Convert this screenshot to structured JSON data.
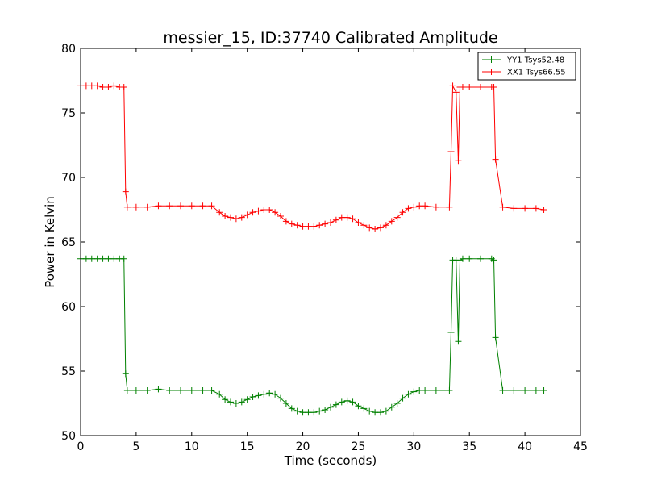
{
  "chart_data": {
    "type": "line",
    "title": "messier_15, ID:37740 Calibrated Amplitude",
    "xlabel": "Time (seconds)",
    "ylabel": "Power in Kelvin",
    "xlim": [
      0,
      45
    ],
    "ylim": [
      50,
      80
    ],
    "xticks": [
      "0",
      "5",
      "10",
      "15",
      "20",
      "25",
      "30",
      "35",
      "40",
      "45"
    ],
    "yticks": [
      "50",
      "55",
      "60",
      "65",
      "70",
      "75",
      "80"
    ],
    "grid": false,
    "legend_position": "top-right",
    "series": [
      {
        "name": "YY1 Tsys52.48",
        "color": "#008000",
        "x": [
          0.0,
          0.5,
          1.0,
          1.5,
          2.0,
          2.5,
          3.0,
          3.5,
          3.9,
          4.05,
          4.2,
          5.0,
          6.0,
          7.0,
          8.0,
          9.0,
          10.0,
          11.0,
          11.8,
          12.5,
          13.0,
          13.5,
          14.0,
          14.5,
          15.0,
          15.5,
          16.0,
          16.5,
          17.0,
          17.5,
          18.0,
          18.5,
          19.0,
          19.5,
          20.0,
          20.5,
          21.0,
          21.5,
          22.0,
          22.5,
          23.0,
          23.5,
          24.0,
          24.5,
          25.0,
          25.5,
          26.0,
          26.5,
          27.0,
          27.5,
          28.0,
          28.5,
          29.0,
          29.5,
          30.0,
          30.5,
          31.0,
          32.0,
          33.2,
          33.35,
          33.5,
          33.8,
          34.0,
          34.15,
          34.4,
          35.0,
          36.0,
          37.0,
          37.2,
          37.35,
          38.0,
          39.0,
          40.0,
          41.0,
          41.7
        ],
        "values": [
          63.7,
          63.7,
          63.7,
          63.7,
          63.7,
          63.7,
          63.7,
          63.7,
          63.7,
          54.8,
          53.5,
          53.5,
          53.5,
          53.6,
          53.5,
          53.5,
          53.5,
          53.5,
          53.5,
          53.2,
          52.8,
          52.6,
          52.5,
          52.6,
          52.8,
          53.0,
          53.1,
          53.2,
          53.3,
          53.2,
          52.9,
          52.5,
          52.1,
          51.9,
          51.8,
          51.8,
          51.8,
          51.9,
          52.0,
          52.2,
          52.4,
          52.6,
          52.7,
          52.6,
          52.3,
          52.1,
          51.9,
          51.8,
          51.8,
          51.9,
          52.2,
          52.5,
          52.9,
          53.2,
          53.4,
          53.5,
          53.5,
          53.5,
          53.5,
          58.0,
          63.6,
          63.6,
          57.3,
          63.6,
          63.7,
          63.7,
          63.7,
          63.7,
          63.6,
          57.6,
          53.5,
          53.5,
          53.5,
          53.5,
          53.5
        ]
      },
      {
        "name": "XX1 Tsys66.55",
        "color": "#ff0000",
        "x": [
          0.0,
          0.5,
          1.0,
          1.5,
          2.0,
          2.5,
          3.0,
          3.5,
          3.9,
          4.05,
          4.2,
          5.0,
          6.0,
          7.0,
          8.0,
          9.0,
          10.0,
          11.0,
          11.8,
          12.5,
          13.0,
          13.5,
          14.0,
          14.5,
          15.0,
          15.5,
          16.0,
          16.5,
          17.0,
          17.5,
          18.0,
          18.5,
          19.0,
          19.5,
          20.0,
          20.5,
          21.0,
          21.5,
          22.0,
          22.5,
          23.0,
          23.5,
          24.0,
          24.5,
          25.0,
          25.5,
          26.0,
          26.5,
          27.0,
          27.5,
          28.0,
          28.5,
          29.0,
          29.5,
          30.0,
          30.5,
          31.0,
          32.0,
          33.2,
          33.35,
          33.5,
          33.8,
          34.0,
          34.15,
          34.4,
          35.0,
          36.0,
          37.0,
          37.2,
          37.35,
          38.0,
          39.0,
          40.0,
          41.0,
          41.7
        ],
        "values": [
          77.1,
          77.1,
          77.1,
          77.1,
          77.0,
          77.0,
          77.1,
          77.0,
          77.0,
          68.9,
          67.7,
          67.7,
          67.7,
          67.8,
          67.8,
          67.8,
          67.8,
          67.8,
          67.8,
          67.3,
          67.0,
          66.9,
          66.8,
          66.9,
          67.1,
          67.3,
          67.4,
          67.5,
          67.5,
          67.3,
          67.0,
          66.6,
          66.4,
          66.3,
          66.2,
          66.2,
          66.2,
          66.3,
          66.4,
          66.5,
          66.7,
          66.9,
          66.9,
          66.8,
          66.5,
          66.3,
          66.1,
          66.0,
          66.1,
          66.3,
          66.6,
          66.9,
          67.3,
          67.6,
          67.7,
          67.8,
          67.8,
          67.7,
          67.7,
          72.0,
          77.1,
          76.6,
          71.3,
          77.0,
          77.0,
          77.0,
          77.0,
          77.0,
          77.0,
          71.4,
          67.7,
          67.6,
          67.6,
          67.6,
          67.5
        ]
      }
    ]
  }
}
